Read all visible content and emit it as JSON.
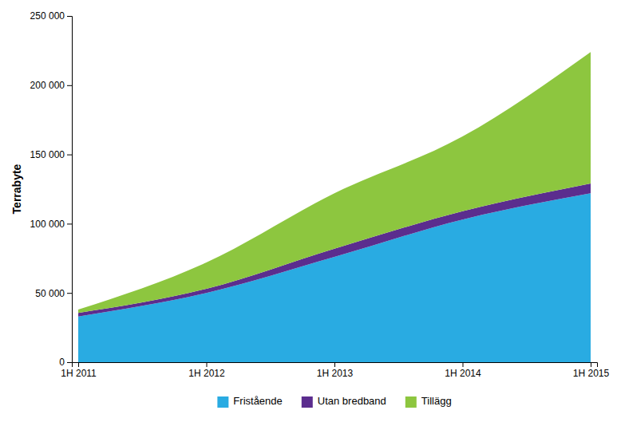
{
  "chart_data": {
    "type": "area",
    "stacked": true,
    "ylabel": "Terrabyte",
    "categories": [
      "1H 2011",
      "1H 2012",
      "1H 2013",
      "1H 2014",
      "1H 2015"
    ],
    "series": [
      {
        "name": "Fristående",
        "color": "#29ABE2",
        "values": [
          33000,
          50000,
          76000,
          103000,
          122000
        ]
      },
      {
        "name": "Utan bredband",
        "color": "#5B2D8E",
        "values": [
          2500,
          3000,
          6000,
          6000,
          7000
        ]
      },
      {
        "name": "Tillägg",
        "color": "#8DC63F",
        "values": [
          2500,
          19000,
          40000,
          54000,
          95000
        ]
      }
    ],
    "ylim": [
      0,
      250000
    ],
    "yticks": [
      0,
      {
        "value": 50000,
        "label": "50 000"
      },
      {
        "value": 100000,
        "label": "100 000"
      },
      {
        "value": 150000,
        "label": "150 000"
      },
      {
        "value": 200000,
        "label": "200 000"
      },
      {
        "value": 250000,
        "label": "250 000"
      }
    ],
    "grid": false,
    "legend": "bottom"
  }
}
